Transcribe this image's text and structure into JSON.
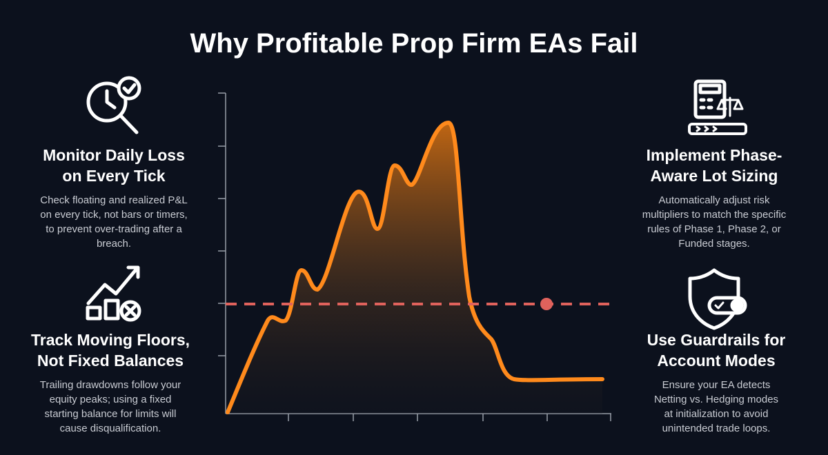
{
  "header": {
    "title": "Why Profitable Prop Firm EAs Fail"
  },
  "panels": [
    {
      "heading": [
        "Monitor Daily Loss",
        "on Every Tick"
      ],
      "body": [
        "Check floating and realized P&L",
        "on every tick, not bars or timers,",
        "to prevent over-trading after a",
        "breach."
      ]
    },
    {
      "heading": [
        "Track Moving Floors,",
        "Not Fixed Balances"
      ],
      "body": [
        "Trailing drawdowns follow your",
        "equity peaks; using a fixed",
        "starting balance for limits will",
        "cause disqualification."
      ]
    },
    {
      "heading": [
        "Implement Phase-",
        "Aware Lot Sizing"
      ],
      "body": [
        "Automatically adjust risk",
        "multipliers to match the specific",
        "rules of Phase 1, Phase 2, or",
        "Funded stages."
      ]
    },
    {
      "heading": [
        "Use Guardrails for",
        "Account Modes"
      ],
      "body": [
        "Ensure your EA detects",
        "Netting vs. Hedging modes",
        "at initialization to avoid",
        "unintended trade loops."
      ]
    }
  ]
}
